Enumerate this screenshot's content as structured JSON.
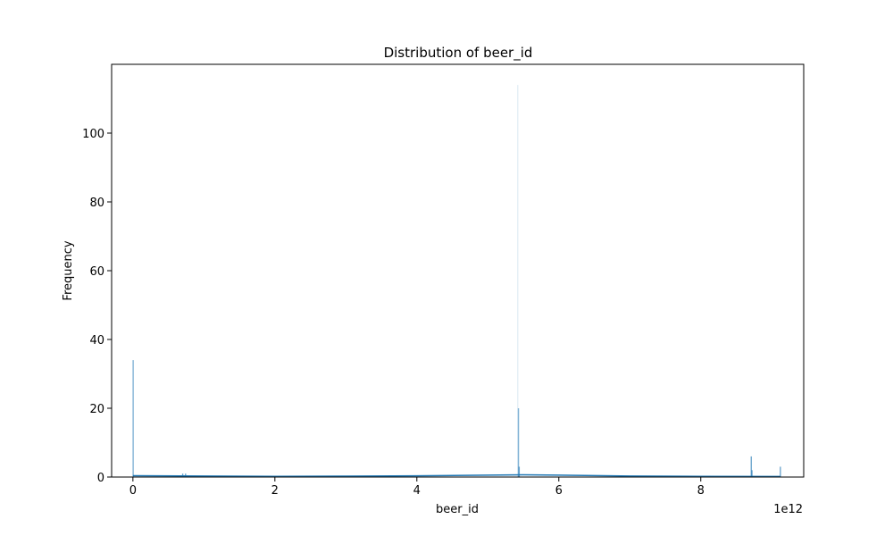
{
  "chart_data": {
    "type": "bar",
    "title": "Distribution of beer_id",
    "xlabel": "beer_id",
    "ylabel": "Frequency",
    "x_offset_label": "1e12",
    "xlim": [
      -300000000000.0,
      9450000000000.0
    ],
    "ylim": [
      0,
      120
    ],
    "x_ticks": [
      0,
      2,
      4,
      6,
      8
    ],
    "y_ticks": [
      0,
      20,
      40,
      60,
      80,
      100
    ],
    "grid": false,
    "legend": "none",
    "bar_color": "#1f77b4",
    "bars": [
      {
        "x": 2000000000.0,
        "count": 34
      },
      {
        "x": 700000000000.0,
        "count": 1
      },
      {
        "x": 740000000000.0,
        "count": 1
      },
      {
        "x": 5420000000000.0,
        "count": 114
      },
      {
        "x": 5430000000000.0,
        "count": 20
      },
      {
        "x": 5440000000000.0,
        "count": 3
      },
      {
        "x": 8710000000000.0,
        "count": 6
      },
      {
        "x": 8720000000000.0,
        "count": 2
      },
      {
        "x": 9120000000000.0,
        "count": 3
      }
    ],
    "kde": {
      "x": [
        0,
        1000000000000.0,
        2000000000000.0,
        3000000000000.0,
        4000000000000.0,
        5000000000000.0,
        5500000000000.0,
        6000000000000.0,
        7000000000000.0,
        8000000000000.0,
        9000000000000.0,
        9120000000000.0
      ],
      "y": [
        0.4,
        0.3,
        0.2,
        0.25,
        0.35,
        0.55,
        0.65,
        0.55,
        0.3,
        0.2,
        0.15,
        0.15
      ]
    }
  }
}
